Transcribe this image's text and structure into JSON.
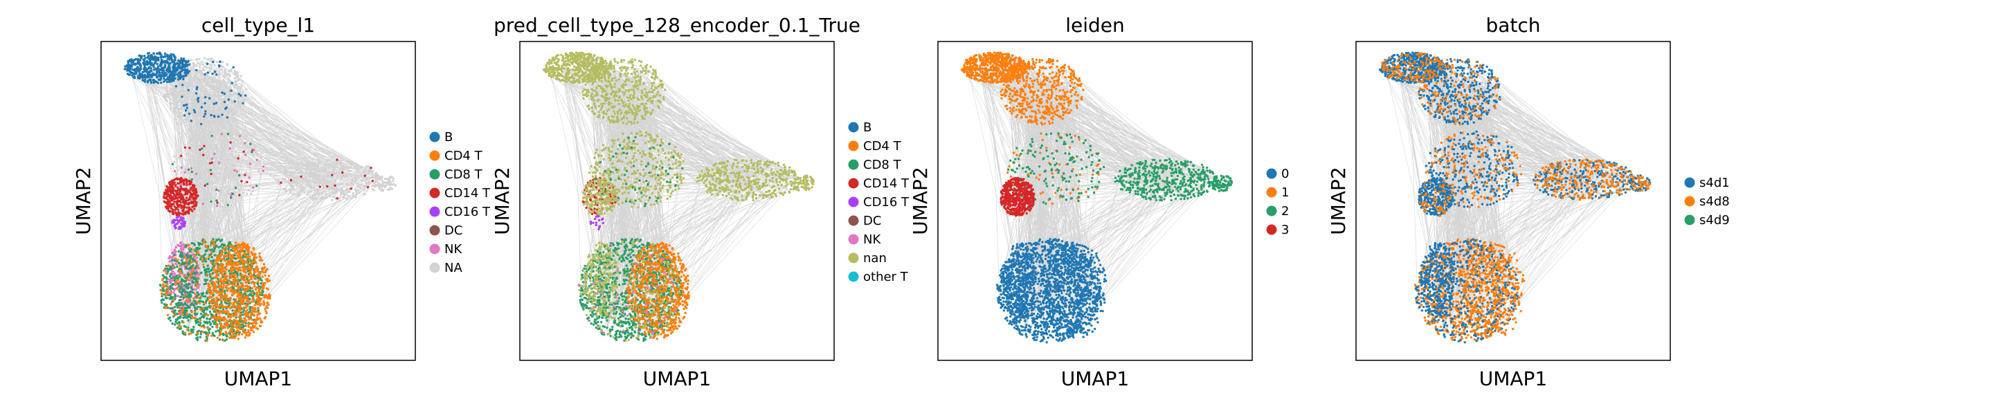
{
  "figure": {
    "colors": {
      "edge": "#b3b3b3",
      "frame": "#000000"
    }
  },
  "chart_data": [
    {
      "type": "scatter",
      "title": "cell_type_l1",
      "xlabel": "UMAP1",
      "ylabel": "UMAP2",
      "legend_position": "right",
      "grid": false,
      "series": [
        {
          "name": "B",
          "color": "#1f77b4"
        },
        {
          "name": "CD4 T",
          "color": "#ff7f0e"
        },
        {
          "name": "CD8 T",
          "color": "#279e68"
        },
        {
          "name": "CD14 T",
          "color": "#d62728"
        },
        {
          "name": "CD16 T",
          "color": "#aa40fc"
        },
        {
          "name": "DC",
          "color": "#8c564b"
        },
        {
          "name": "NK",
          "color": "#e377c2"
        },
        {
          "name": "NA",
          "color": "#d3d3d3"
        }
      ]
    },
    {
      "type": "scatter",
      "title": "pred_cell_type_128_encoder_0.1_True",
      "xlabel": "UMAP1",
      "ylabel": "UMAP2",
      "legend_position": "right",
      "grid": false,
      "series": [
        {
          "name": "B",
          "color": "#1f77b4"
        },
        {
          "name": "CD4 T",
          "color": "#ff7f0e"
        },
        {
          "name": "CD8 T",
          "color": "#279e68"
        },
        {
          "name": "CD14 T",
          "color": "#d62728"
        },
        {
          "name": "CD16 T",
          "color": "#aa40fc"
        },
        {
          "name": "DC",
          "color": "#8c564b"
        },
        {
          "name": "NK",
          "color": "#e377c2"
        },
        {
          "name": "nan",
          "color": "#b5bd61"
        },
        {
          "name": "other T",
          "color": "#17becf"
        }
      ]
    },
    {
      "type": "scatter",
      "title": "leiden",
      "xlabel": "UMAP1",
      "ylabel": "UMAP2",
      "legend_position": "right",
      "grid": false,
      "series": [
        {
          "name": "0",
          "color": "#1f77b4"
        },
        {
          "name": "1",
          "color": "#ff7f0e"
        },
        {
          "name": "2",
          "color": "#279e68"
        },
        {
          "name": "3",
          "color": "#d62728"
        }
      ]
    },
    {
      "type": "scatter",
      "title": "batch",
      "xlabel": "UMAP1",
      "ylabel": "UMAP2",
      "legend_position": "right",
      "grid": false,
      "series": [
        {
          "name": "s4d1",
          "color": "#1f77b4"
        },
        {
          "name": "s4d8",
          "color": "#ff7f0e"
        },
        {
          "name": "s4d9",
          "color": "#279e68"
        }
      ]
    }
  ]
}
